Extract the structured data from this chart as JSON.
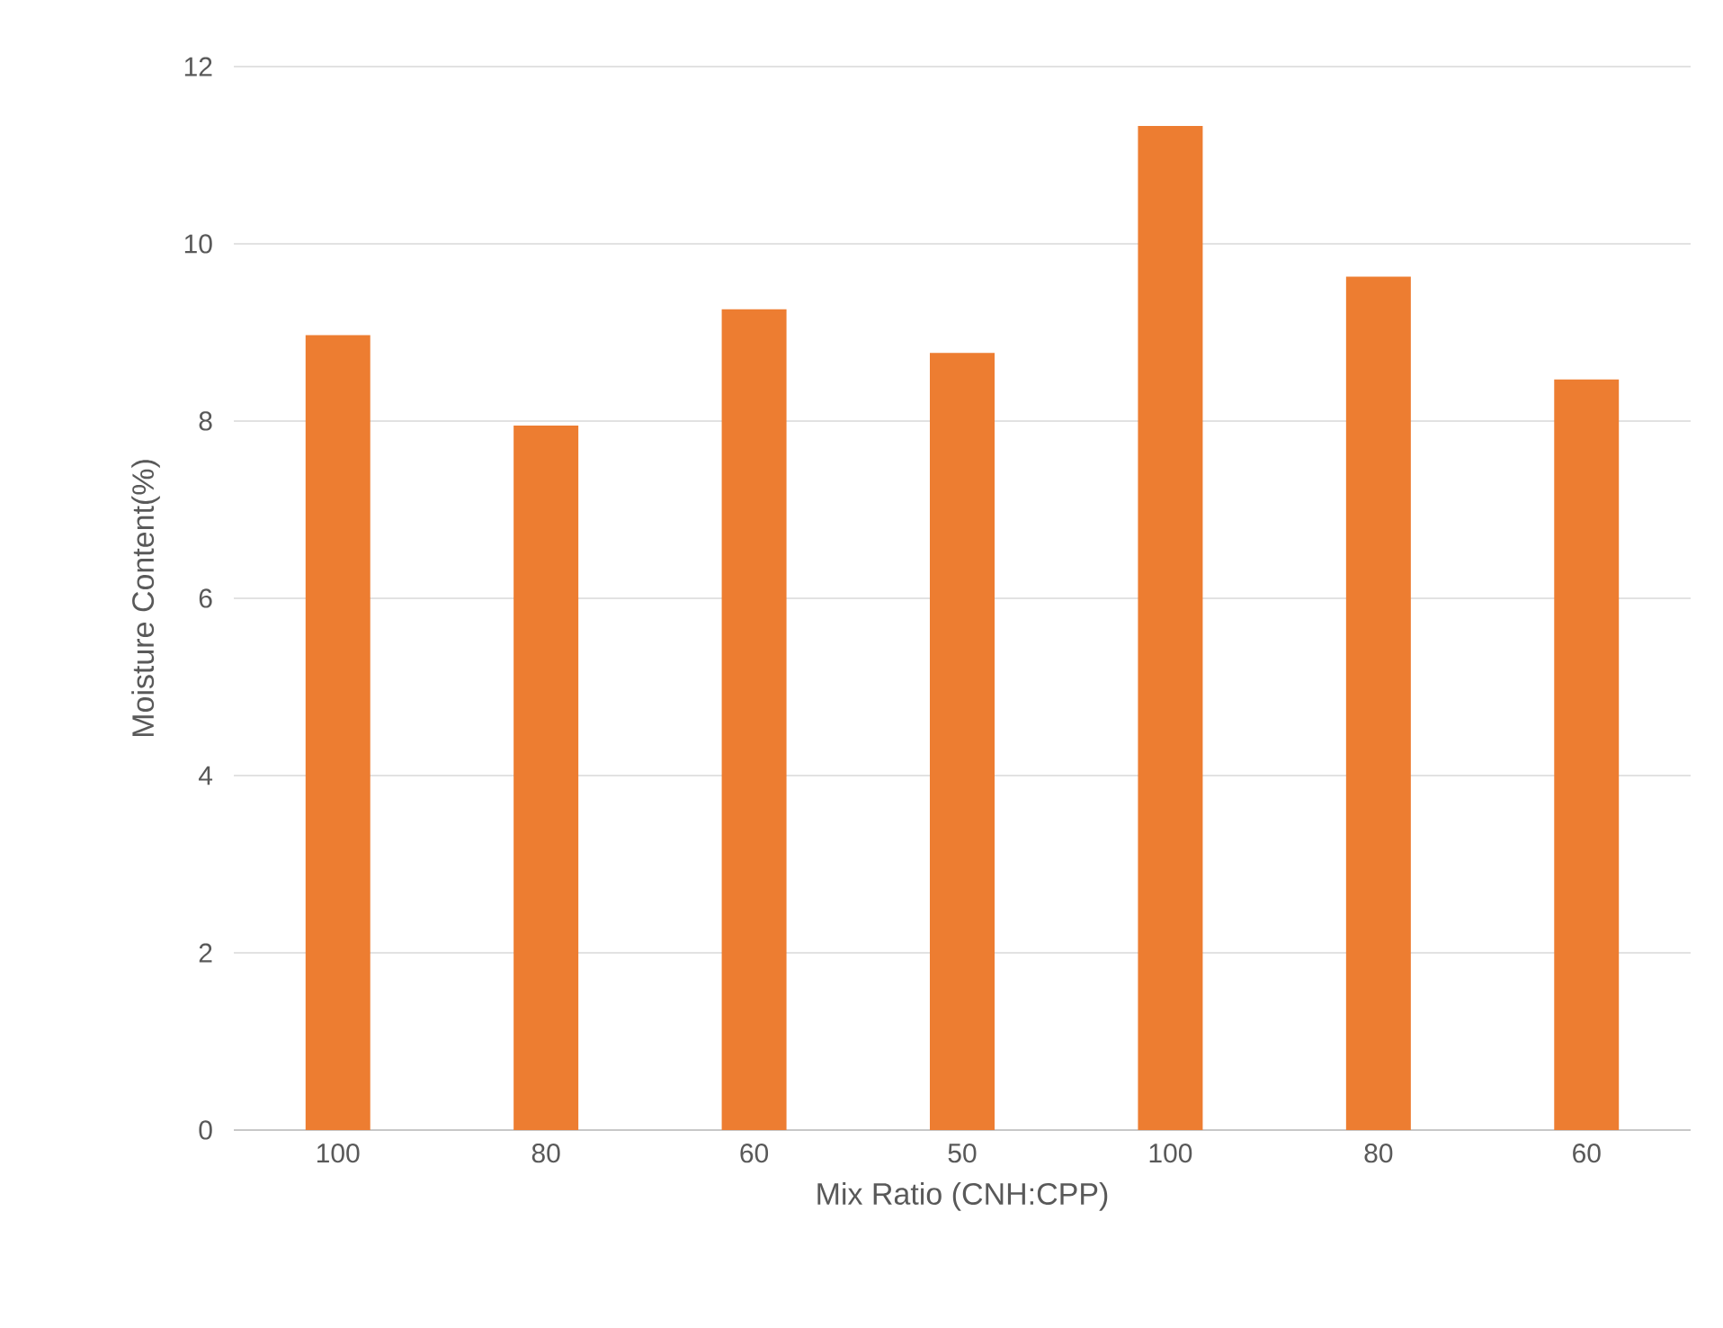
{
  "chart_data": {
    "type": "bar",
    "xlabel": "Mix Ratio (CNH:CPP)",
    "ylabel": "Moisture Content(%)",
    "categories": [
      "100",
      "80",
      "60",
      "50",
      "100",
      "80",
      "60"
    ],
    "values": [
      8.97,
      7.95,
      9.26,
      8.77,
      11.33,
      9.63,
      8.47
    ],
    "color": "#ed7d31",
    "ylim": [
      0,
      12
    ],
    "yticks": [
      0,
      2,
      4,
      6,
      8,
      10,
      12
    ],
    "grid": "y"
  }
}
